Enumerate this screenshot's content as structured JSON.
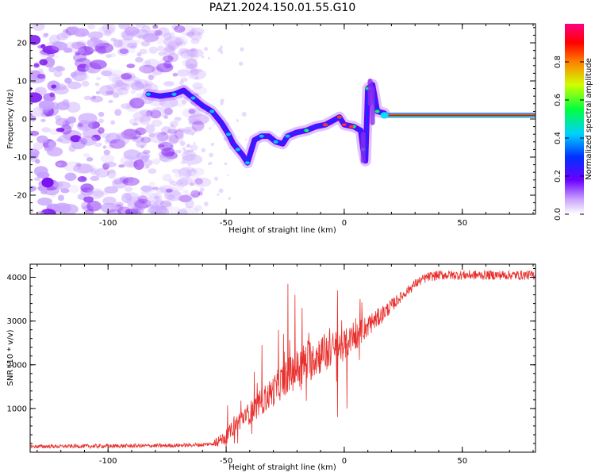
{
  "figure": {
    "title": "PAZ1.2024.150.01.55.G10"
  },
  "chart_data": [
    {
      "type": "heatmap",
      "xlabel": "Height of straight line (km)",
      "ylabel": "Frequency (Hz)",
      "xlim": [
        -133,
        81
      ],
      "ylim": [
        -25,
        25
      ],
      "xticks": [
        -100,
        -50,
        0,
        50
      ],
      "yticks": [
        -20,
        -10,
        0,
        10,
        20
      ],
      "colorbar": {
        "label": "Normalized spectral amplitude",
        "range": [
          0,
          1
        ],
        "ticks": [
          0.0,
          0.2,
          0.4,
          0.6,
          0.8
        ],
        "colormap": "rainbow-white-violet"
      },
      "ridge": [
        [
          -83,
          6.5
        ],
        [
          -78,
          6
        ],
        [
          -72,
          6.5
        ],
        [
          -68,
          7.5
        ],
        [
          -64,
          5.5
        ],
        [
          -60,
          3.5
        ],
        [
          -56,
          2
        ],
        [
          -52,
          -1
        ],
        [
          -49,
          -4
        ],
        [
          -47,
          -6.5
        ],
        [
          -45,
          -8
        ],
        [
          -43,
          -9.5
        ],
        [
          -41,
          -11.5
        ],
        [
          -38,
          -5.5
        ],
        [
          -35,
          -4.5
        ],
        [
          -32,
          -4.5
        ],
        [
          -29,
          -6
        ],
        [
          -26,
          -6.5
        ],
        [
          -24,
          -4.5
        ],
        [
          -20,
          -3.5
        ],
        [
          -16,
          -3
        ],
        [
          -12,
          -2
        ],
        [
          -8,
          -1.5
        ],
        [
          -5,
          -0.5
        ],
        [
          -2,
          0.5
        ],
        [
          0,
          -1.5
        ],
        [
          4,
          -2
        ],
        [
          7,
          -3
        ],
        [
          8,
          -8
        ],
        [
          9,
          -11
        ],
        [
          10,
          8
        ],
        [
          12,
          9
        ],
        [
          14,
          2
        ],
        [
          17,
          1.5
        ],
        [
          81,
          1
        ]
      ],
      "carrier_line": {
        "x": [
          17,
          81
        ],
        "frequency": 1,
        "amplitude": 1.0
      }
    },
    {
      "type": "line",
      "xlabel": "Height of straight line (km)",
      "ylabel": "SNR (10 * v/v)",
      "xlim": [
        -133,
        81
      ],
      "ylim": [
        0,
        4300
      ],
      "xticks": [
        -100,
        -50,
        0,
        50
      ],
      "yticks": [
        1000,
        2000,
        3000,
        4000
      ],
      "color": "#e8312e",
      "envelope": {
        "x": [
          -133,
          -100,
          -75,
          -60,
          -55,
          -50,
          -45,
          -40,
          -35,
          -30,
          -25,
          -20,
          -15,
          -10,
          -5,
          0,
          5,
          10,
          15,
          20,
          25,
          30,
          35,
          40,
          50,
          60,
          70,
          81
        ],
        "y": [
          130,
          140,
          150,
          170,
          200,
          350,
          700,
          900,
          1150,
          1400,
          1700,
          1900,
          2100,
          2250,
          2350,
          2450,
          2650,
          2900,
          3100,
          3350,
          3600,
          3850,
          4000,
          4050,
          4050,
          4050,
          4050,
          4050
        ]
      },
      "spikes": [
        {
          "x": -24,
          "y": 3850
        },
        {
          "x": -21,
          "y": 3600
        },
        {
          "x": -18,
          "y": 3300
        },
        {
          "x": -3,
          "y": 3700
        },
        {
          "x": -3,
          "y": 800
        },
        {
          "x": -35,
          "y": 2450
        },
        {
          "x": -28,
          "y": 2800
        },
        {
          "x": 1,
          "y": 1000
        }
      ]
    }
  ]
}
